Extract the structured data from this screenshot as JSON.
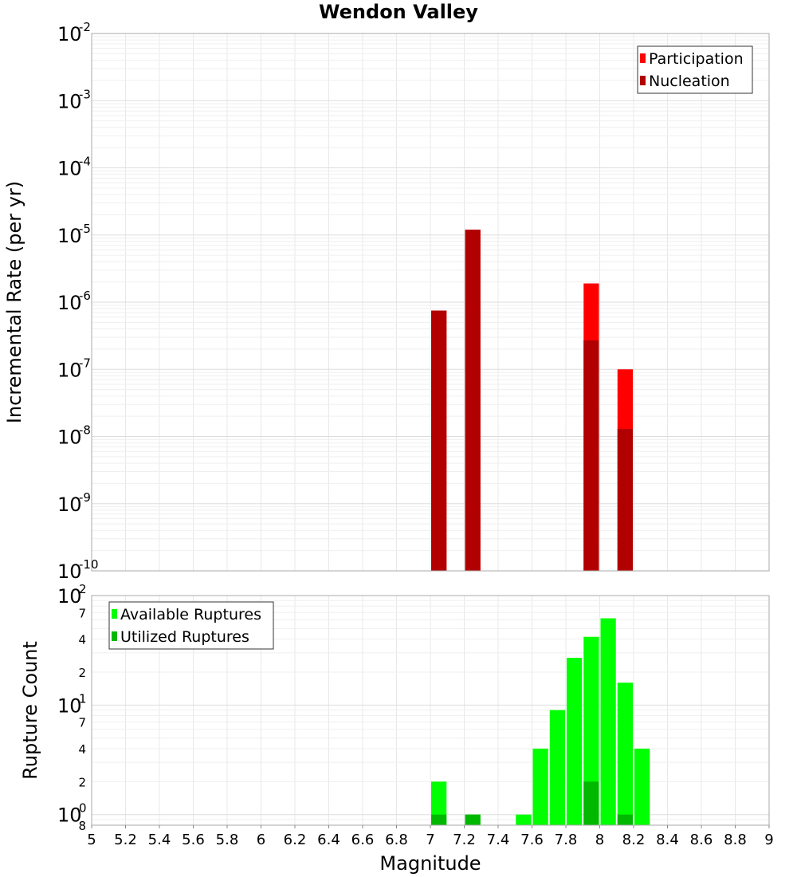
{
  "chart_data": {
    "title": "Wendon Valley",
    "xlabel": "Magnitude",
    "xlim": [
      5,
      9
    ],
    "x_ticks": [
      "5",
      "5.2",
      "5.4",
      "5.6",
      "5.8",
      "6",
      "6.2",
      "6.4",
      "6.6",
      "6.8",
      "7",
      "7.2",
      "7.4",
      "7.6",
      "7.8",
      "8",
      "8.2",
      "8.4",
      "8.6",
      "8.8",
      "9"
    ],
    "grid": true,
    "bar_width": 0.1,
    "panels": [
      {
        "type": "bar",
        "ylabel": "Incremental Rate (per yr)",
        "yscale": "log",
        "ylim": [
          1e-10,
          0.01
        ],
        "y_tick_labels": [
          {
            "base": "10",
            "exp": "-2"
          },
          {
            "base": "10",
            "exp": "-3"
          },
          {
            "base": "10",
            "exp": "-4"
          },
          {
            "base": "10",
            "exp": "-5"
          },
          {
            "base": "10",
            "exp": "-6"
          },
          {
            "base": "10",
            "exp": "-7"
          },
          {
            "base": "10",
            "exp": "-8"
          },
          {
            "base": "10",
            "exp": "-9"
          },
          {
            "base": "10",
            "exp": "-10"
          }
        ],
        "legend_position": "top-right",
        "series": [
          {
            "name": "Participation",
            "color": "#ff0000",
            "x": [
              7.05,
              7.25,
              7.95,
              8.15
            ],
            "values": [
              7.5e-07,
              1.2e-05,
              1.9e-06,
              1e-07
            ]
          },
          {
            "name": "Nucleation",
            "color": "#b20000",
            "x": [
              7.05,
              7.25,
              7.95,
              8.15
            ],
            "values": [
              7.5e-07,
              1.2e-05,
              2.7e-07,
              1.3e-08
            ]
          }
        ]
      },
      {
        "type": "bar",
        "ylabel": "Rupture Count",
        "yscale": "log",
        "ylim": [
          0.8,
          100
        ],
        "y_tick_labels": [
          {
            "base": "10",
            "exp": "2",
            "value": 100,
            "major": true
          },
          {
            "label": "7",
            "value": 70
          },
          {
            "label": "4",
            "value": 40
          },
          {
            "label": "2",
            "value": 20
          },
          {
            "base": "10",
            "exp": "1",
            "value": 10,
            "major": true
          },
          {
            "label": "7",
            "value": 7
          },
          {
            "label": "4",
            "value": 4
          },
          {
            "label": "2",
            "value": 2
          },
          {
            "base": "10",
            "exp": "0",
            "value": 1,
            "major": true
          },
          {
            "label": "8",
            "value": 0.8
          }
        ],
        "legend_position": "top-left",
        "series": [
          {
            "name": "Available Ruptures",
            "color": "#00ff00",
            "x": [
              7.05,
              7.25,
              7.55,
              7.65,
              7.75,
              7.85,
              7.95,
              8.05,
              8.15,
              8.25
            ],
            "values": [
              2,
              1,
              1,
              4,
              9,
              27,
              42,
              62,
              16,
              4
            ]
          },
          {
            "name": "Utilized Ruptures",
            "color": "#00b800",
            "x": [
              7.05,
              7.25,
              7.95,
              8.15
            ],
            "values": [
              1,
              1,
              2,
              1
            ]
          }
        ]
      }
    ]
  }
}
